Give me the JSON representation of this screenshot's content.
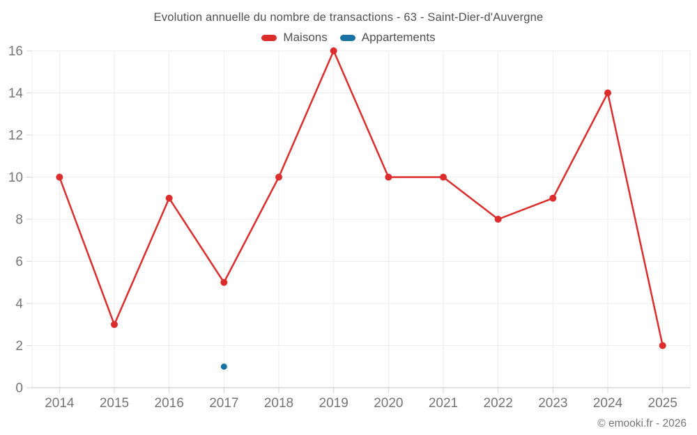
{
  "chart": {
    "title": "Evolution annuelle du nombre de transactions - 63 - Saint-Dier-d'Auvergne",
    "footer": "© emooki.fr - 2026"
  },
  "colors": {
    "grid": "#ededed",
    "axis": "#c6c6c6",
    "tick": "#d6d6d6",
    "tick_label": "#757575",
    "title_text": "#4f4f4f",
    "background": "#ffffff"
  },
  "chart_data": {
    "type": "line",
    "title": "Evolution annuelle du nombre de transactions - 63 - Saint-Dier-d'Auvergne",
    "categories": [
      "2014",
      "2015",
      "2016",
      "2017",
      "2018",
      "2019",
      "2020",
      "2021",
      "2022",
      "2023",
      "2024",
      "2025"
    ],
    "series": [
      {
        "name": "Maisons",
        "color": "#dc2c2c",
        "values": [
          10,
          3,
          9,
          5,
          10,
          16,
          10,
          10,
          8,
          9,
          14,
          2
        ]
      },
      {
        "name": "Appartements",
        "color": "#1a72a5",
        "values": [
          null,
          null,
          null,
          1,
          null,
          null,
          null,
          null,
          null,
          null,
          null,
          null
        ]
      }
    ],
    "ylim": [
      0,
      16
    ],
    "yticks": [
      0,
      2,
      4,
      6,
      8,
      10,
      12,
      14,
      16
    ],
    "grid": true,
    "legend_position": "top",
    "xlabel": "",
    "ylabel": ""
  }
}
